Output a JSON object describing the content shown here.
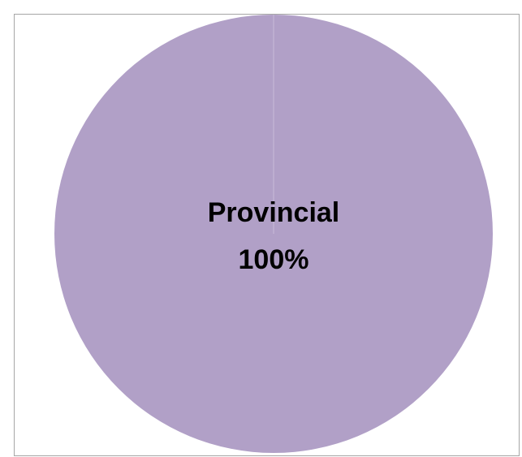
{
  "chart_data": {
    "type": "pie",
    "categories": [
      "Provincial"
    ],
    "values": [
      100
    ],
    "value_labels": [
      "100%"
    ],
    "colors": [
      "#b1a0c7"
    ]
  }
}
